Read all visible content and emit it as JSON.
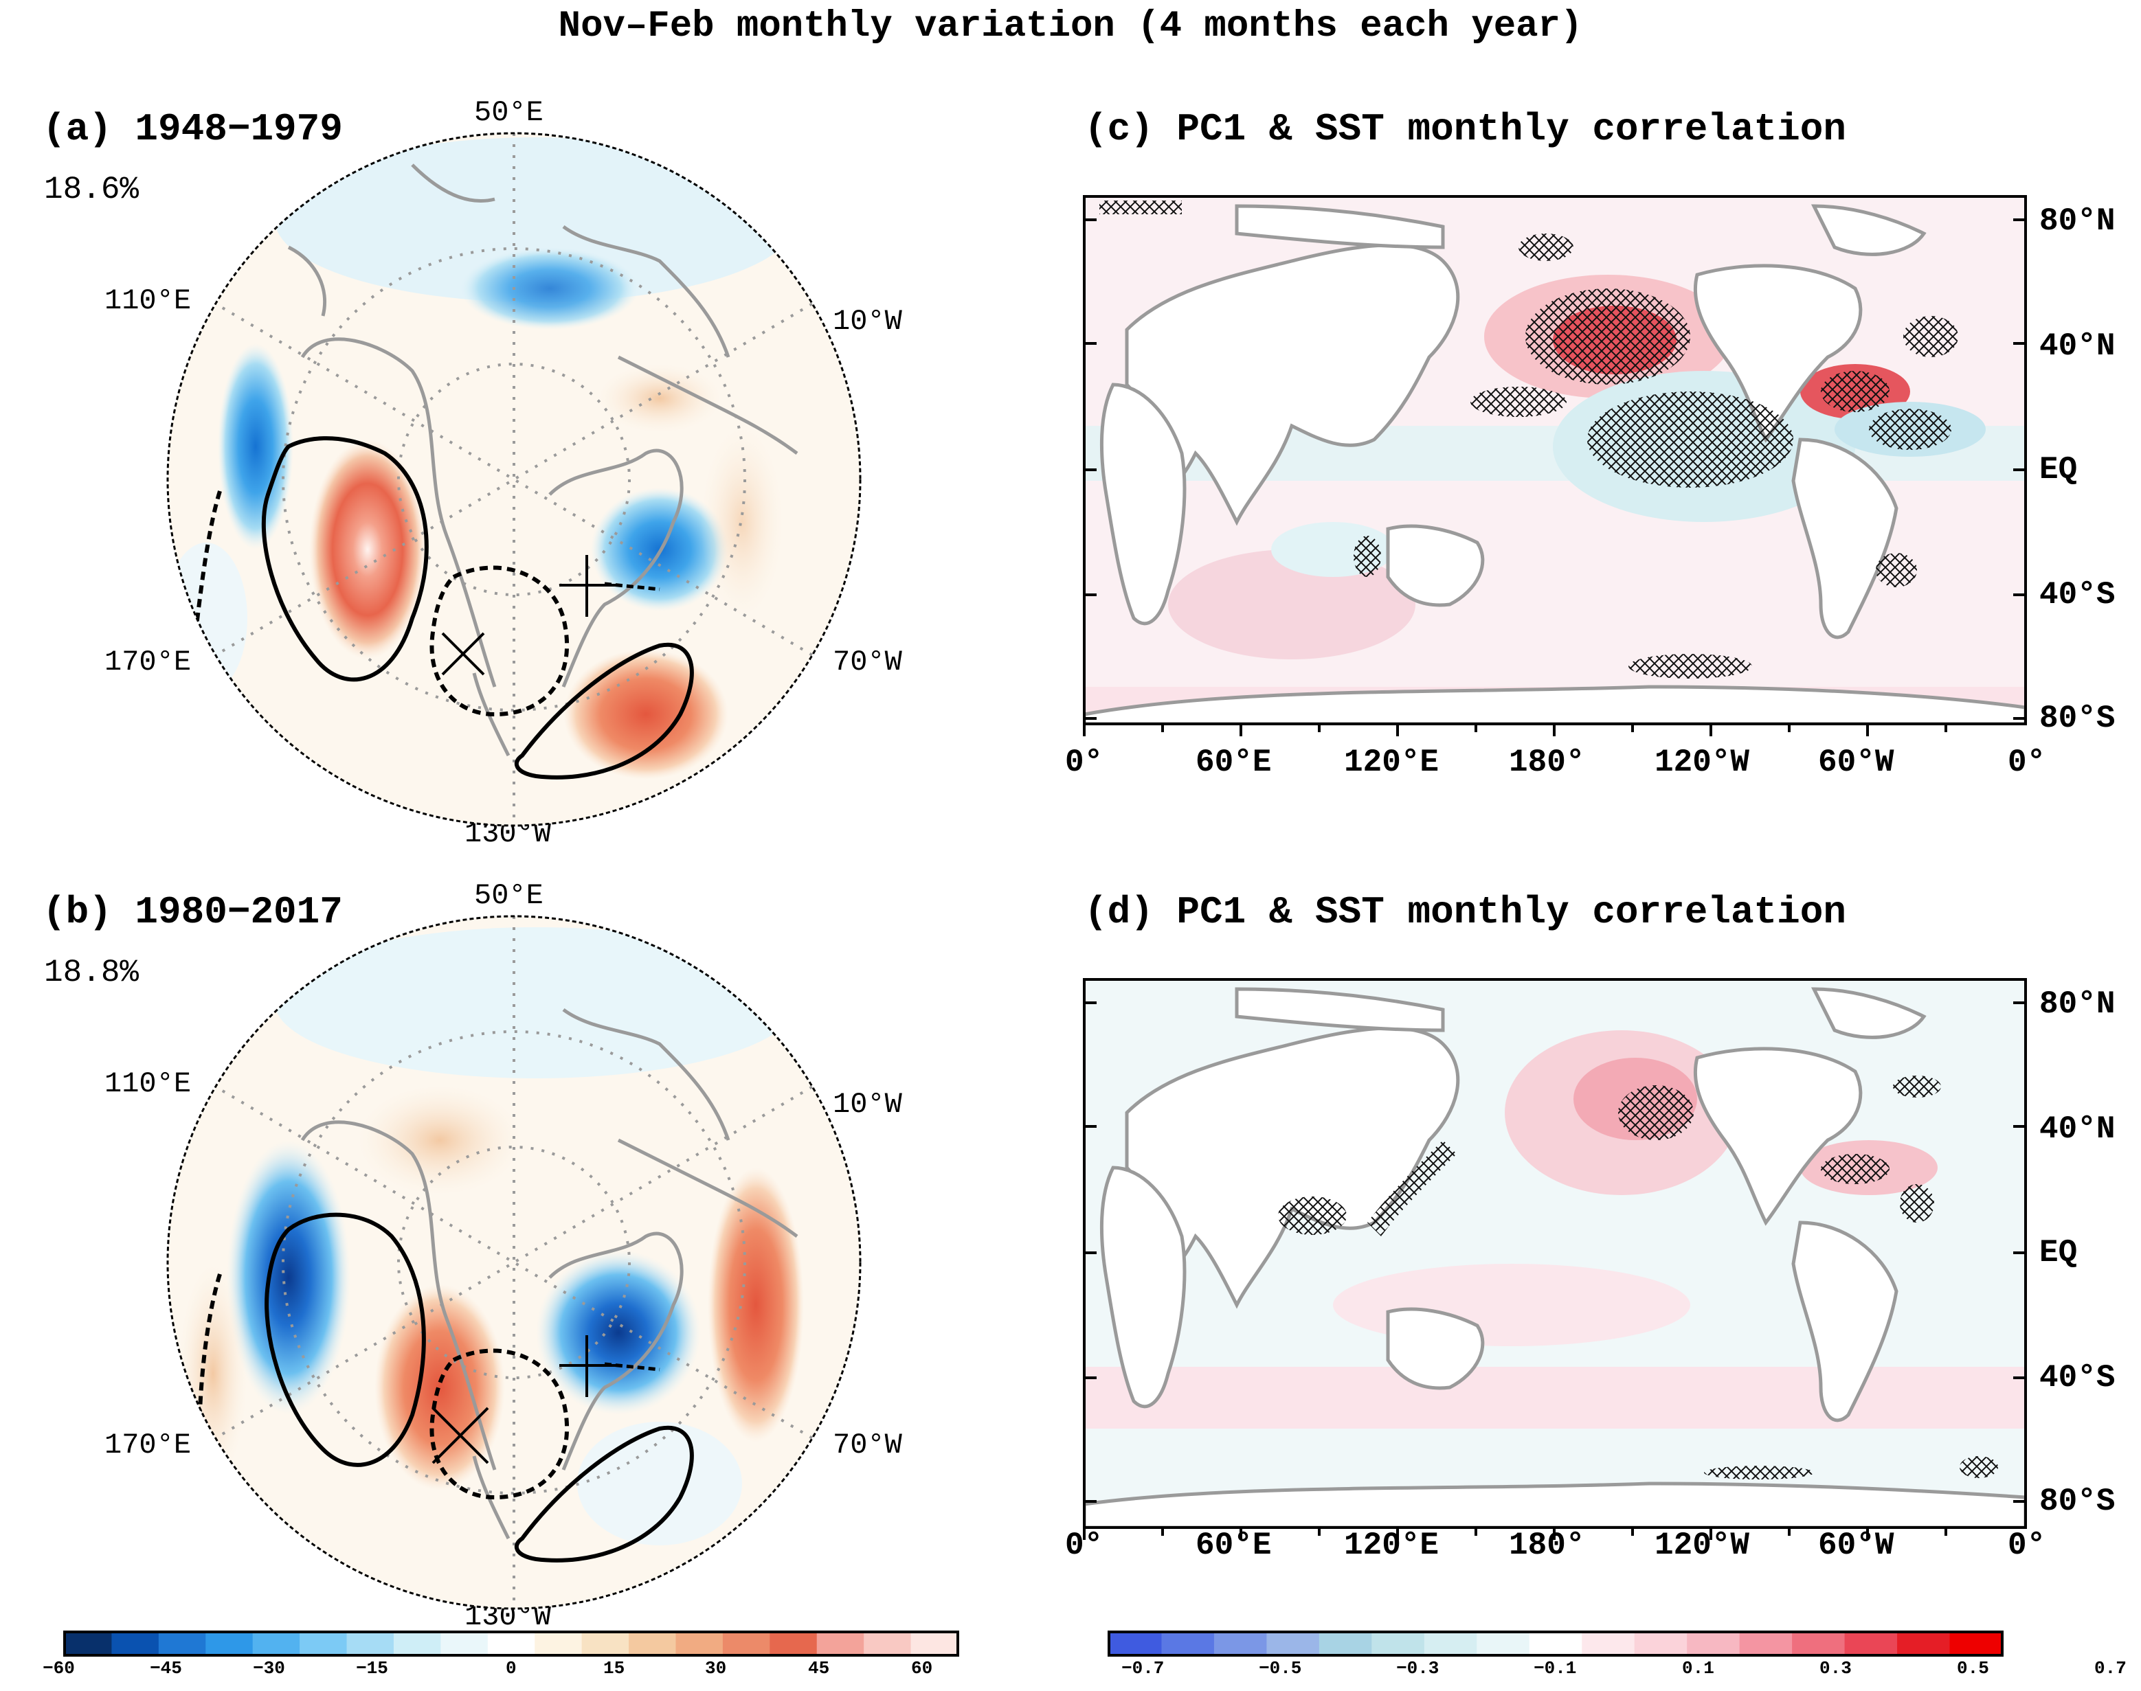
{
  "figure": {
    "title": "Nov–Feb monthly variation (4 months each year)"
  },
  "panels": {
    "a": {
      "title": "(a) 1948−1979",
      "variance": "18.6%",
      "lon_labels": [
        "50°E",
        "110°E",
        "10°W",
        "170°E",
        "70°W",
        "130°W"
      ]
    },
    "b": {
      "title": "(b) 1980−2017",
      "variance": "18.8%",
      "lon_labels": [
        "50°E",
        "110°E",
        "10°W",
        "170°E",
        "70°W",
        "130°W"
      ]
    },
    "c": {
      "title": "(c) PC1 & SST monthly correlation",
      "lat_labels": [
        "80°N",
        "40°N",
        "EQ",
        "40°S",
        "80°S"
      ],
      "lon_labels": [
        "0°",
        "60°E",
        "120°E",
        "180°",
        "120°W",
        "60°W",
        "0°"
      ]
    },
    "d": {
      "title": "(d) PC1 & SST monthly correlation",
      "lat_labels": [
        "80°N",
        "40°N",
        "EQ",
        "40°S",
        "80°S"
      ],
      "lon_labels": [
        "0°",
        "60°E",
        "120°E",
        "180°",
        "120°W",
        "60°W",
        "0°"
      ]
    }
  },
  "colorbars": {
    "left": {
      "ticks": [
        "−60",
        "−45",
        "−30",
        "−15",
        "0",
        "15",
        "30",
        "45",
        "60"
      ],
      "colors": [
        "#08306b",
        "#0a52b0",
        "#1f78d4",
        "#2e98e8",
        "#52b2f0",
        "#7ccaf5",
        "#a6dcf5",
        "#cfeef7",
        "#eaf7fa",
        "#ffffff",
        "#fdf3e2",
        "#f8e2c3",
        "#f4c9a0",
        "#f1ab82",
        "#ec8a69",
        "#e6684e",
        "#f3a39a",
        "#f9c9c3",
        "#fde6e2"
      ]
    },
    "right": {
      "ticks": [
        "−0.7",
        "−0.5",
        "−0.3",
        "−0.1",
        "0.1",
        "0.3",
        "0.5",
        "0.7"
      ],
      "colors": [
        "#3f5be0",
        "#5a78e4",
        "#7b97e6",
        "#9bb6e8",
        "#a8d3e4",
        "#c0e3ea",
        "#d6eef2",
        "#e9f6f8",
        "#ffffff",
        "#fde8ec",
        "#fbd3da",
        "#f7b8c2",
        "#f495a2",
        "#ef6f7e",
        "#ea4656",
        "#e51e26",
        "#ee0000"
      ]
    }
  }
}
